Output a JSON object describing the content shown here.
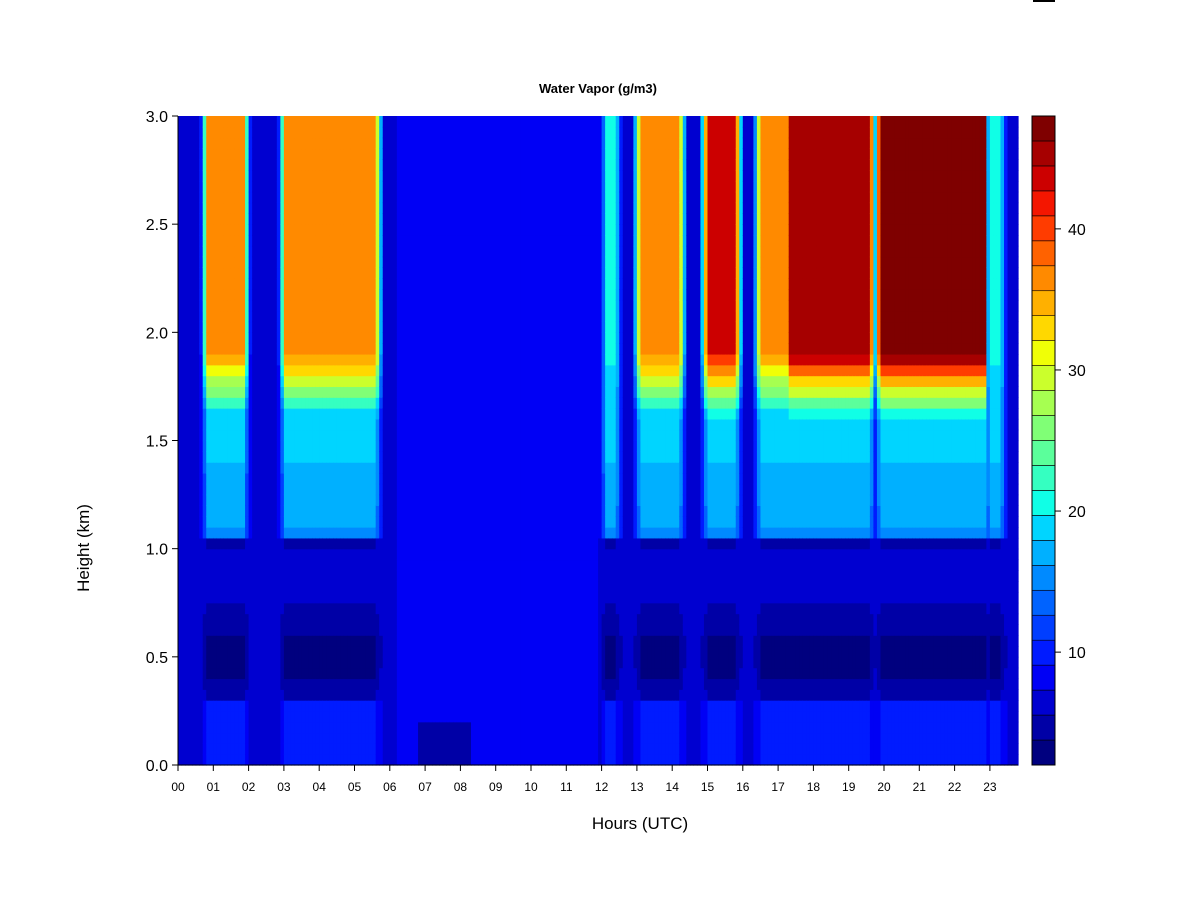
{
  "chart_data": {
    "type": "heatmap",
    "title": "Water Vapor (g/m3)",
    "xlabel": "Hours (UTC)",
    "ylabel": "Height (km)",
    "xlim": [
      0,
      24
    ],
    "ylim": [
      0,
      3
    ],
    "x_tick_labels": [
      "00",
      "01",
      "02",
      "03",
      "04",
      "05",
      "06",
      "07",
      "08",
      "09",
      "10",
      "11",
      "12",
      "13",
      "14",
      "15",
      "16",
      "17",
      "18",
      "19",
      "20",
      "21",
      "22",
      "23"
    ],
    "y_tick_labels": [
      "0.0",
      "0.5",
      "1.0",
      "1.5",
      "2.0",
      "2.5",
      "3.0"
    ],
    "colorbar": {
      "range": [
        2,
        48
      ],
      "levels": [
        2,
        4,
        6,
        8,
        10,
        12,
        14,
        16,
        18,
        20,
        22,
        24,
        26,
        28,
        30,
        32,
        34,
        36,
        38,
        40,
        42,
        44,
        46,
        48
      ],
      "colors": [
        "#00007f",
        "#0000a6",
        "#0000d0",
        "#0000f5",
        "#001bff",
        "#003eff",
        "#0063ff",
        "#008aff",
        "#00b0ff",
        "#00d5ff",
        "#10ffe6",
        "#35ffc1",
        "#5bff9b",
        "#80ff76",
        "#a6ff51",
        "#cbff2c",
        "#f0ff06",
        "#ffd800",
        "#ffb000",
        "#ff8a00",
        "#ff6200",
        "#ff3c00",
        "#f41600",
        "#cc0000",
        "#a60000",
        "#7f0000"
      ],
      "tick_labels": [
        "10",
        "20",
        "30",
        "40"
      ],
      "tick_values": [
        10,
        20,
        30,
        40
      ]
    },
    "moist_plumes": [
      {
        "start": 0.85,
        "end": 1.85,
        "peak": 36
      },
      {
        "start": 3.05,
        "end": 5.6,
        "peak": 37
      },
      {
        "start": 12.15,
        "end": 12.4,
        "peak": 20
      },
      {
        "start": 13.1,
        "end": 14.2,
        "peak": 37
      },
      {
        "start": 15.0,
        "end": 15.8,
        "peak": 43
      },
      {
        "start": 16.5,
        "end": 17.3,
        "peak": 36
      },
      {
        "start": 17.3,
        "end": 19.6,
        "peak": 45
      },
      {
        "start": 19.9,
        "end": 22.9,
        "peak": 47
      },
      {
        "start": 23.0,
        "end": 23.3,
        "peak": 20
      }
    ]
  }
}
